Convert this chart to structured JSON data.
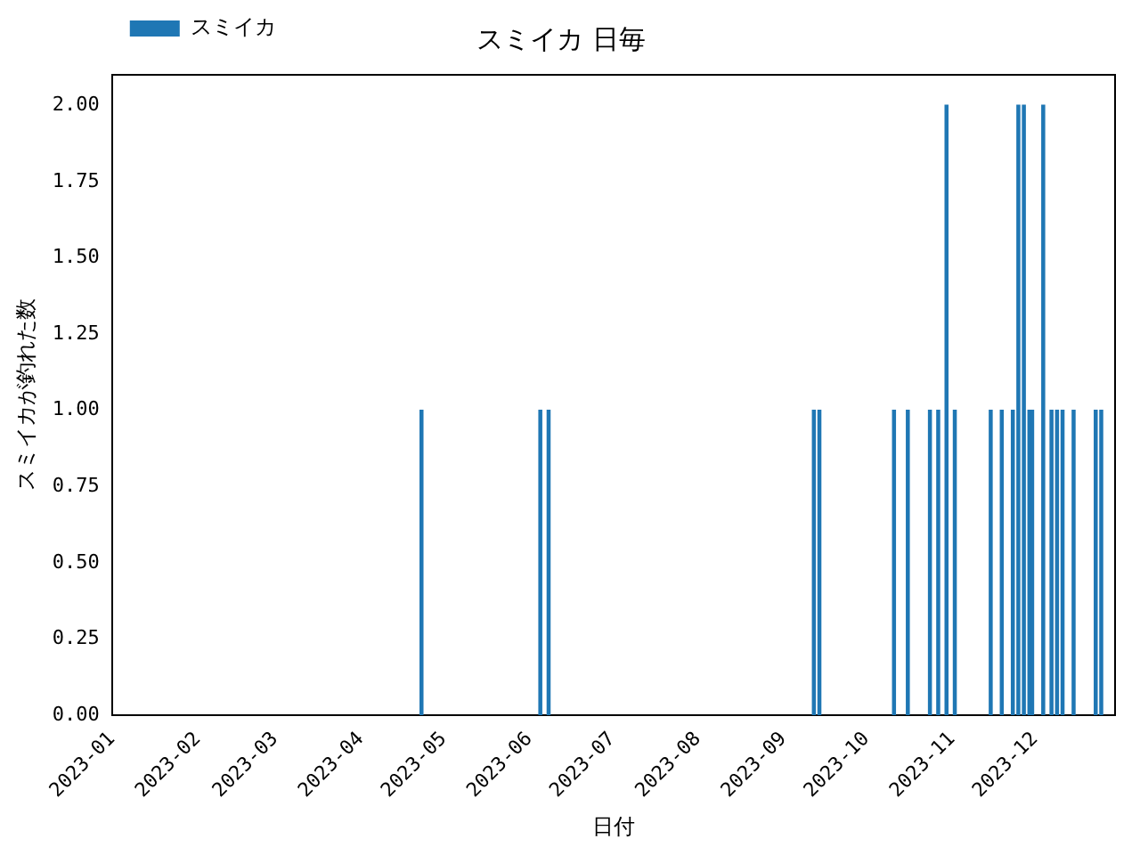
{
  "chart_data": {
    "type": "bar",
    "title": "スミイカ 日毎",
    "xlabel": "日付",
    "ylabel": "スミイカが釣れた数",
    "x": [
      "2023-04-23",
      "2023-06-05",
      "2023-06-08",
      "2023-09-12",
      "2023-09-14",
      "2023-10-11",
      "2023-10-16",
      "2023-10-24",
      "2023-10-27",
      "2023-10-30",
      "2023-11-02",
      "2023-11-15",
      "2023-11-19",
      "2023-11-23",
      "2023-11-25",
      "2023-11-27",
      "2023-11-29",
      "2023-11-30",
      "2023-12-04",
      "2023-12-07",
      "2023-12-09",
      "2023-12-11",
      "2023-12-15",
      "2023-12-23",
      "2023-12-25"
    ],
    "series": [
      {
        "name": "スミイカ",
        "color": "#1f77b4",
        "values": [
          1,
          1,
          1,
          1,
          1,
          1,
          1,
          1,
          1,
          2,
          1,
          1,
          1,
          1,
          2,
          2,
          1,
          1,
          2,
          1,
          1,
          1,
          1,
          1,
          1
        ]
      }
    ],
    "xlim": [
      "2023-01-01",
      "2023-12-30"
    ],
    "xticks": [
      {
        "value": "2023-01-01",
        "label": "2023-01"
      },
      {
        "value": "2023-02-01",
        "label": "2023-02"
      },
      {
        "value": "2023-03-01",
        "label": "2023-03"
      },
      {
        "value": "2023-04-01",
        "label": "2023-04"
      },
      {
        "value": "2023-05-01",
        "label": "2023-05"
      },
      {
        "value": "2023-06-01",
        "label": "2023-06"
      },
      {
        "value": "2023-07-01",
        "label": "2023-07"
      },
      {
        "value": "2023-08-01",
        "label": "2023-08"
      },
      {
        "value": "2023-09-01",
        "label": "2023-09"
      },
      {
        "value": "2023-10-01",
        "label": "2023-10"
      },
      {
        "value": "2023-11-01",
        "label": "2023-11"
      },
      {
        "value": "2023-12-01",
        "label": "2023-12"
      }
    ],
    "ylim": [
      0,
      2.1
    ],
    "yticks": [
      {
        "value": 0,
        "label": "0.00"
      },
      {
        "value": 0.25,
        "label": "0.25"
      },
      {
        "value": 0.5,
        "label": "0.50"
      },
      {
        "value": 0.75,
        "label": "0.75"
      },
      {
        "value": 1,
        "label": "1.00"
      },
      {
        "value": 1.25,
        "label": "1.25"
      },
      {
        "value": 1.5,
        "label": "1.50"
      },
      {
        "value": 1.75,
        "label": "1.75"
      },
      {
        "value": 2,
        "label": "2.00"
      }
    ],
    "grid": false,
    "legend": "top left"
  }
}
